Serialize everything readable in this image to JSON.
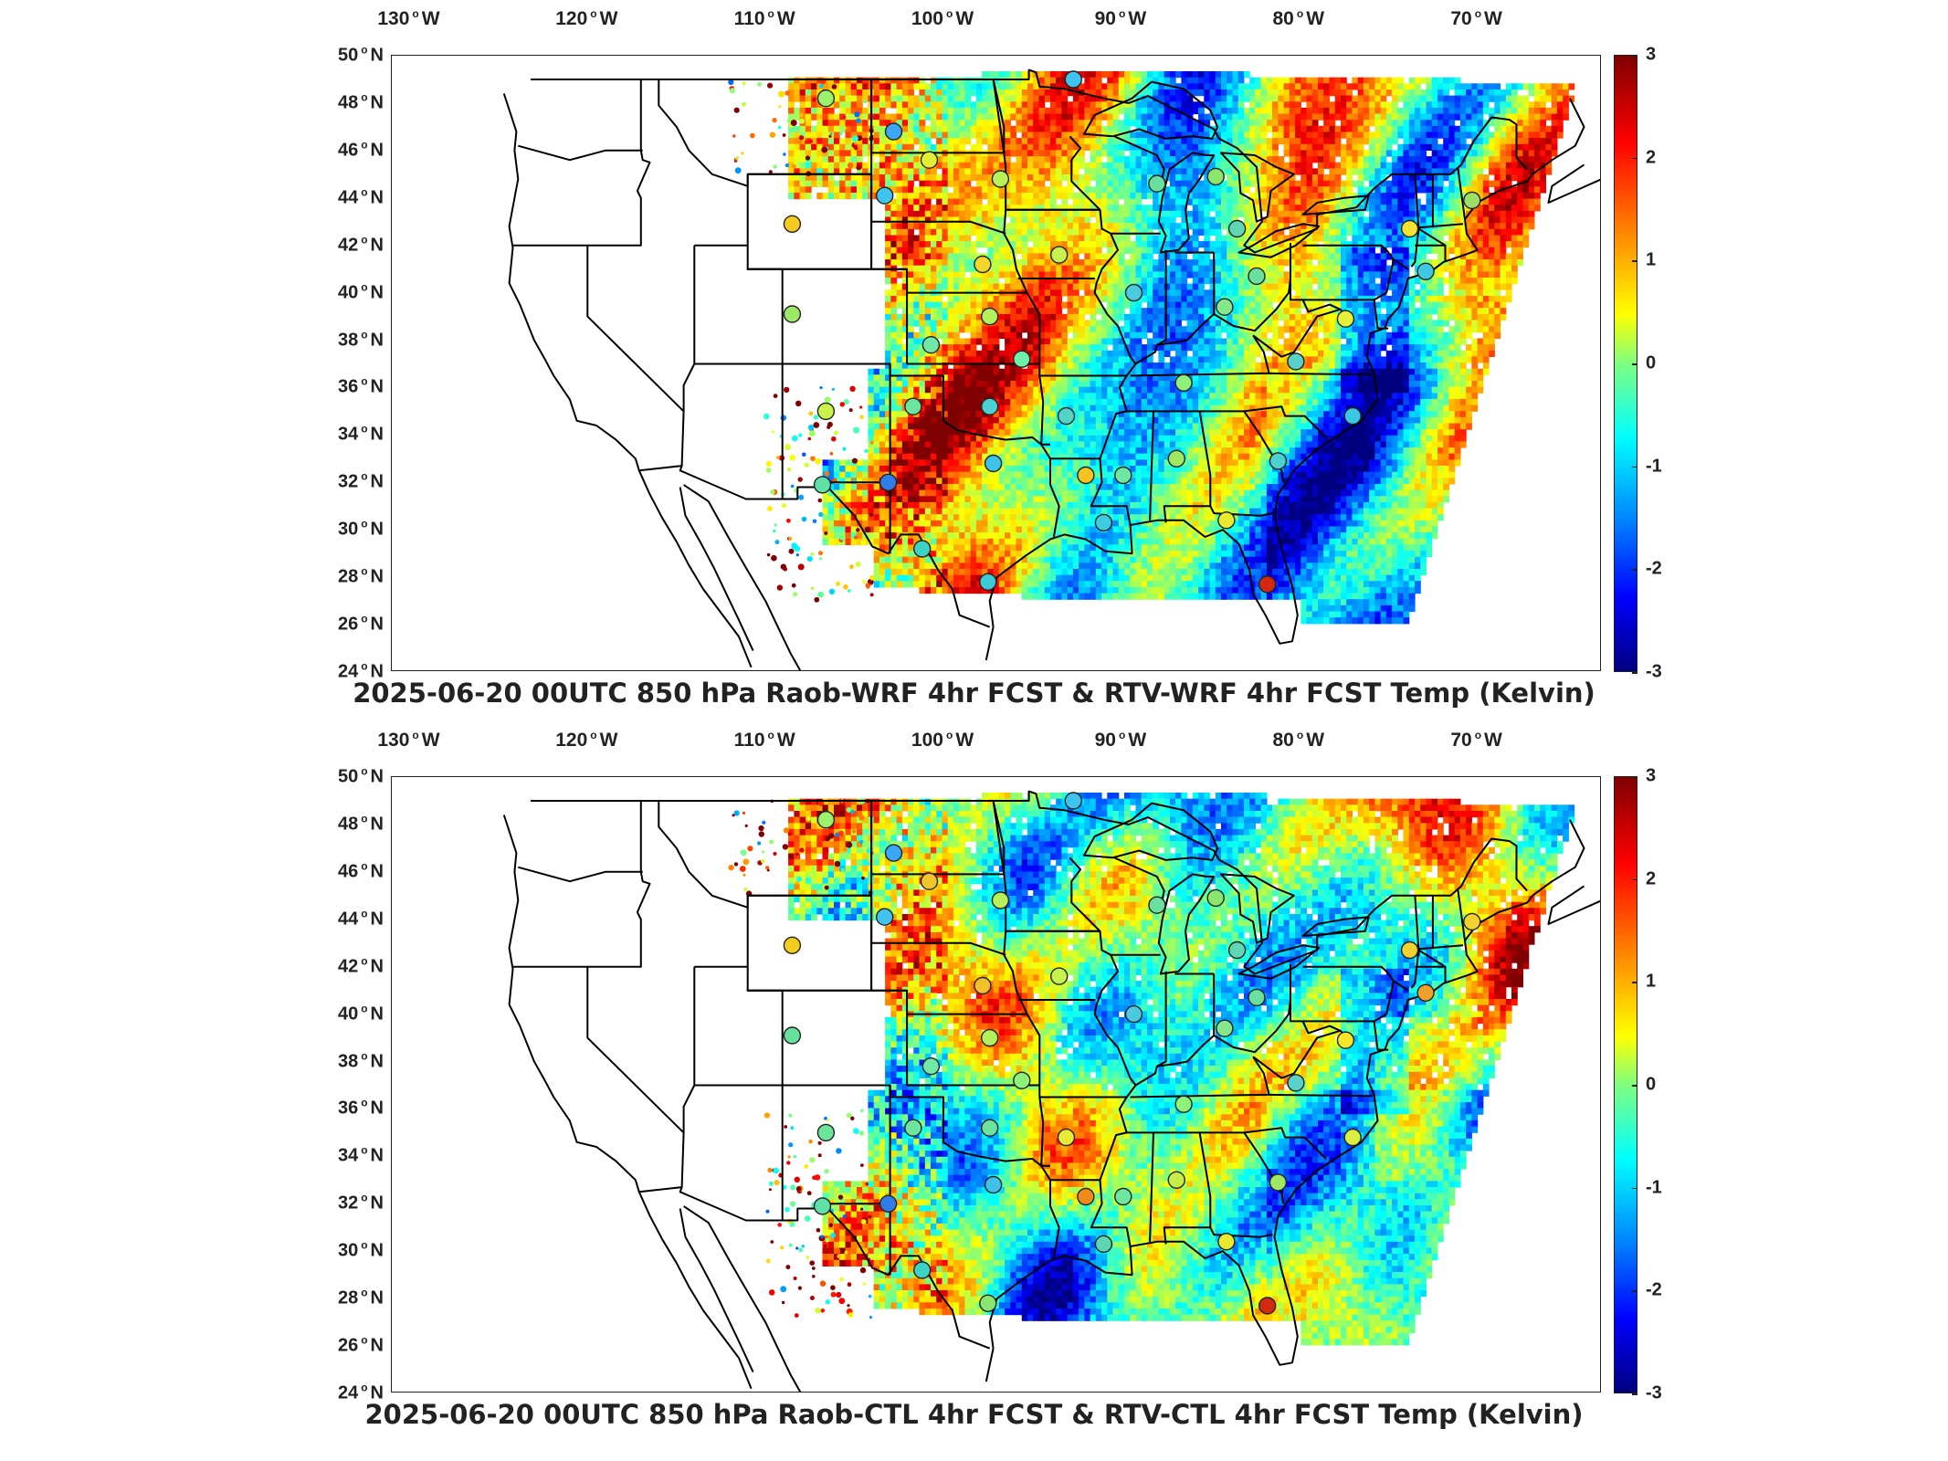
{
  "panels": [
    {
      "title": "2025-06-20 00UTC 850 hPa Raob-WRF 4hr FCST & RTV-WRF 4hr FCST Temp (Kelvin)",
      "stations": [
        {
          "lon": -106.6,
          "lat": 48.2,
          "color": "#9cf26a"
        },
        {
          "lon": -102.8,
          "lat": 46.8,
          "color": "#3aa6f5"
        },
        {
          "lon": -100.8,
          "lat": 45.6,
          "color": "#e2ee33"
        },
        {
          "lon": -96.8,
          "lat": 44.8,
          "color": "#b8f05a"
        },
        {
          "lon": -103.3,
          "lat": 44.1,
          "color": "#3ec4ef"
        },
        {
          "lon": -108.5,
          "lat": 42.9,
          "color": "#f4cb1f"
        },
        {
          "lon": -97.8,
          "lat": 41.2,
          "color": "#f2d62a"
        },
        {
          "lon": -93.5,
          "lat": 41.6,
          "color": "#c5f24e"
        },
        {
          "lon": -108.5,
          "lat": 39.1,
          "color": "#9ce96a"
        },
        {
          "lon": -100.7,
          "lat": 37.8,
          "color": "#6fe8a8"
        },
        {
          "lon": -97.4,
          "lat": 39.0,
          "color": "#b2f05e"
        },
        {
          "lon": -95.6,
          "lat": 37.2,
          "color": "#6ff0aa"
        },
        {
          "lon": -106.6,
          "lat": 35.0,
          "color": "#c9f24a"
        },
        {
          "lon": -101.7,
          "lat": 35.2,
          "color": "#6be59e"
        },
        {
          "lon": -97.4,
          "lat": 35.2,
          "color": "#4cd2d5"
        },
        {
          "lon": -93.1,
          "lat": 34.8,
          "color": "#55d2c6"
        },
        {
          "lon": -103.1,
          "lat": 32.0,
          "color": "#2f7de8"
        },
        {
          "lon": -106.8,
          "lat": 31.9,
          "color": "#5ee0a6"
        },
        {
          "lon": -97.2,
          "lat": 32.8,
          "color": "#3ec2ea"
        },
        {
          "lon": -92.0,
          "lat": 32.3,
          "color": "#f4c31f"
        },
        {
          "lon": -89.9,
          "lat": 32.3,
          "color": "#6fe6a2"
        },
        {
          "lon": -86.9,
          "lat": 33.0,
          "color": "#9ee866"
        },
        {
          "lon": -91.0,
          "lat": 30.3,
          "color": "#3ecbe0"
        },
        {
          "lon": -101.2,
          "lat": 29.2,
          "color": "#3ed2c5"
        },
        {
          "lon": -97.5,
          "lat": 27.8,
          "color": "#3ecbd8"
        },
        {
          "lon": -81.8,
          "lat": 27.7,
          "color": "#d12a10"
        },
        {
          "lon": -84.1,
          "lat": 30.4,
          "color": "#e9ea30"
        },
        {
          "lon": -81.2,
          "lat": 32.9,
          "color": "#4ed0cc"
        },
        {
          "lon": -86.5,
          "lat": 36.2,
          "color": "#8ff07a"
        },
        {
          "lon": -84.2,
          "lat": 39.4,
          "color": "#86e68a"
        },
        {
          "lon": -89.3,
          "lat": 40.0,
          "color": "#4ac9df"
        },
        {
          "lon": -82.4,
          "lat": 40.7,
          "color": "#6ae09e"
        },
        {
          "lon": -88.0,
          "lat": 44.6,
          "color": "#6ae09e"
        },
        {
          "lon": -84.7,
          "lat": 44.9,
          "color": "#8be66e"
        },
        {
          "lon": -83.5,
          "lat": 42.7,
          "color": "#5fd6b4"
        },
        {
          "lon": -77.4,
          "lat": 38.9,
          "color": "#e6f038"
        },
        {
          "lon": -73.8,
          "lat": 42.7,
          "color": "#f2e232"
        },
        {
          "lon": -70.3,
          "lat": 43.9,
          "color": "#9ce06a"
        },
        {
          "lon": -80.2,
          "lat": 37.1,
          "color": "#5bd0c8"
        },
        {
          "lon": -77.0,
          "lat": 34.8,
          "color": "#3cc6e6"
        },
        {
          "lon": -72.9,
          "lat": 40.9,
          "color": "#3fc8e2"
        },
        {
          "lon": -92.7,
          "lat": 49.0,
          "color": "#3ec4ef"
        }
      ]
    },
    {
      "title": "2025-06-20 00UTC 850 hPa Raob-CTL 4hr FCST & RTV-CTL 4hr FCST Temp (Kelvin)",
      "stations": [
        {
          "lon": -106.6,
          "lat": 48.2,
          "color": "#9cf26a"
        },
        {
          "lon": -102.8,
          "lat": 46.8,
          "color": "#3aa6f5"
        },
        {
          "lon": -100.8,
          "lat": 45.6,
          "color": "#f0c62a"
        },
        {
          "lon": -96.8,
          "lat": 44.8,
          "color": "#b8f05a"
        },
        {
          "lon": -103.3,
          "lat": 44.1,
          "color": "#3ec4ef"
        },
        {
          "lon": -108.5,
          "lat": 42.9,
          "color": "#f4cb1f"
        },
        {
          "lon": -97.8,
          "lat": 41.2,
          "color": "#f2c02a"
        },
        {
          "lon": -93.5,
          "lat": 41.6,
          "color": "#c5f24e"
        },
        {
          "lon": -108.5,
          "lat": 39.1,
          "color": "#6ae09e"
        },
        {
          "lon": -100.7,
          "lat": 37.8,
          "color": "#6fe8a8"
        },
        {
          "lon": -97.4,
          "lat": 39.0,
          "color": "#b2f05e"
        },
        {
          "lon": -95.6,
          "lat": 37.2,
          "color": "#8ff07a"
        },
        {
          "lon": -106.6,
          "lat": 35.0,
          "color": "#6ce59a"
        },
        {
          "lon": -101.7,
          "lat": 35.2,
          "color": "#6be59e"
        },
        {
          "lon": -97.4,
          "lat": 35.2,
          "color": "#6ee3a0"
        },
        {
          "lon": -93.1,
          "lat": 34.8,
          "color": "#e8ea35"
        },
        {
          "lon": -103.1,
          "lat": 32.0,
          "color": "#2f7de8"
        },
        {
          "lon": -106.8,
          "lat": 31.9,
          "color": "#5ee0a6"
        },
        {
          "lon": -97.2,
          "lat": 32.8,
          "color": "#3ec2ea"
        },
        {
          "lon": -92.0,
          "lat": 32.3,
          "color": "#f08a1a"
        },
        {
          "lon": -89.9,
          "lat": 32.3,
          "color": "#6fe6a2"
        },
        {
          "lon": -86.9,
          "lat": 33.0,
          "color": "#c8ec4a"
        },
        {
          "lon": -91.0,
          "lat": 30.3,
          "color": "#5ed6b2"
        },
        {
          "lon": -101.2,
          "lat": 29.2,
          "color": "#3ed2c5"
        },
        {
          "lon": -97.5,
          "lat": 27.8,
          "color": "#8ae672"
        },
        {
          "lon": -81.8,
          "lat": 27.7,
          "color": "#d12a10"
        },
        {
          "lon": -84.1,
          "lat": 30.4,
          "color": "#e9ea30"
        },
        {
          "lon": -81.2,
          "lat": 32.9,
          "color": "#9ee866"
        },
        {
          "lon": -86.5,
          "lat": 36.2,
          "color": "#8ff07a"
        },
        {
          "lon": -84.2,
          "lat": 39.4,
          "color": "#86e68a"
        },
        {
          "lon": -89.3,
          "lat": 40.0,
          "color": "#4ac9df"
        },
        {
          "lon": -82.4,
          "lat": 40.7,
          "color": "#6ae09e"
        },
        {
          "lon": -88.0,
          "lat": 44.6,
          "color": "#6ae09e"
        },
        {
          "lon": -84.7,
          "lat": 44.9,
          "color": "#8be66e"
        },
        {
          "lon": -83.5,
          "lat": 42.7,
          "color": "#5fd6b4"
        },
        {
          "lon": -77.4,
          "lat": 38.9,
          "color": "#f5e62a"
        },
        {
          "lon": -73.8,
          "lat": 42.7,
          "color": "#f2d22e"
        },
        {
          "lon": -70.3,
          "lat": 43.9,
          "color": "#f2d22e"
        },
        {
          "lon": -80.2,
          "lat": 37.1,
          "color": "#5bd0c8"
        },
        {
          "lon": -77.0,
          "lat": 34.8,
          "color": "#d8ee40"
        },
        {
          "lon": -72.9,
          "lat": 40.9,
          "color": "#f0a02a"
        },
        {
          "lon": -92.7,
          "lat": 49.0,
          "color": "#3ec4ef"
        }
      ]
    }
  ],
  "lon_ticks": [
    {
      "value": -130,
      "label": "130",
      "hemi": "W"
    },
    {
      "value": -120,
      "label": "120",
      "hemi": "W"
    },
    {
      "value": -110,
      "label": "110",
      "hemi": "W"
    },
    {
      "value": -100,
      "label": "100",
      "hemi": "W"
    },
    {
      "value": -90,
      "label": "90",
      "hemi": "W"
    },
    {
      "value": -80,
      "label": "80",
      "hemi": "W"
    },
    {
      "value": -70,
      "label": "70",
      "hemi": "W"
    }
  ],
  "lat_ticks": [
    {
      "value": 50,
      "label": "50",
      "hemi": "N"
    },
    {
      "value": 48,
      "label": "48",
      "hemi": "N"
    },
    {
      "value": 46,
      "label": "46",
      "hemi": "N"
    },
    {
      "value": 44,
      "label": "44",
      "hemi": "N"
    },
    {
      "value": 42,
      "label": "42",
      "hemi": "N"
    },
    {
      "value": 40,
      "label": "40",
      "hemi": "N"
    },
    {
      "value": 38,
      "label": "38",
      "hemi": "N"
    },
    {
      "value": 36,
      "label": "36",
      "hemi": "N"
    },
    {
      "value": 34,
      "label": "34",
      "hemi": "N"
    },
    {
      "value": 32,
      "label": "32",
      "hemi": "N"
    },
    {
      "value": 30,
      "label": "30",
      "hemi": "N"
    },
    {
      "value": 28,
      "label": "28",
      "hemi": "N"
    },
    {
      "value": 26,
      "label": "26",
      "hemi": "N"
    },
    {
      "value": 24,
      "label": "24",
      "hemi": "N"
    }
  ],
  "colorbar": {
    "ticks": [
      "3",
      "2",
      "1",
      "0",
      "-1",
      "-2",
      "-3"
    ],
    "min": -3,
    "max": 3,
    "colormap": [
      "#00007f",
      "#0000ff",
      "#007fff",
      "#00ffff",
      "#7fff7f",
      "#ffff00",
      "#ff7f00",
      "#ff0000",
      "#7f0000"
    ]
  },
  "map_extent": {
    "lon_min": -131,
    "lon_max": -63,
    "lat_min": 24,
    "lat_max": 50
  }
}
